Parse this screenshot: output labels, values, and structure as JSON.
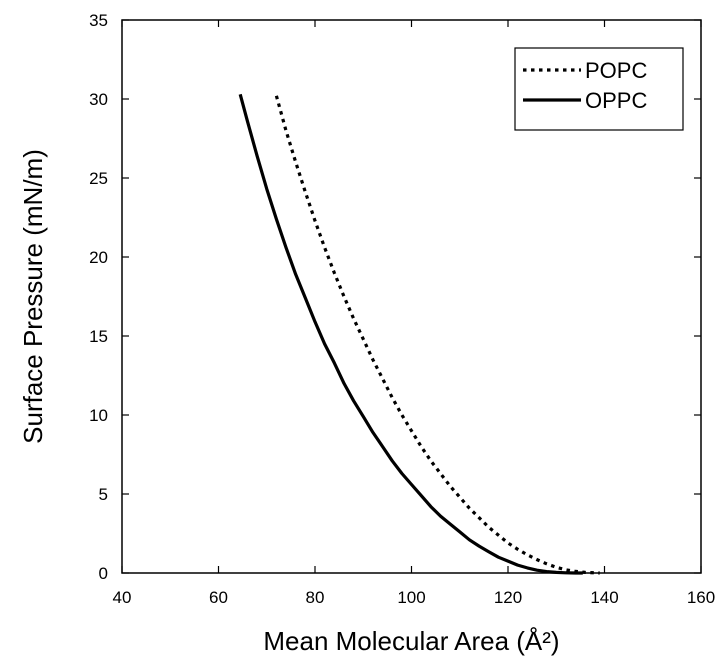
{
  "chart_data": {
    "type": "line",
    "xlabel": "Mean Molecular Area (Å²)",
    "ylabel": "Surface Pressure (mN/m)",
    "xlim": [
      40,
      160
    ],
    "ylim": [
      0,
      35
    ],
    "xticks": [
      40,
      60,
      80,
      100,
      120,
      140,
      160
    ],
    "yticks": [
      0,
      5,
      10,
      15,
      20,
      25,
      30,
      35
    ],
    "grid": false,
    "legend_position": "top-right",
    "series": [
      {
        "name": "POPC",
        "line_style": "dotted",
        "color": "#000000",
        "x": [
          72,
          74,
          76,
          78,
          80,
          82,
          84,
          86,
          88,
          90,
          92,
          94,
          96,
          98,
          100,
          102,
          104,
          106,
          108,
          110,
          112,
          114,
          116,
          118,
          120,
          122,
          124,
          126,
          128,
          130,
          132,
          134,
          136,
          138,
          139
        ],
        "y": [
          30.2,
          28.0,
          26.0,
          24.1,
          22.3,
          20.6,
          19.0,
          17.5,
          16.1,
          14.8,
          13.5,
          12.3,
          11.1,
          10.0,
          9.0,
          8.0,
          7.1,
          6.3,
          5.5,
          4.8,
          4.1,
          3.5,
          2.9,
          2.4,
          1.9,
          1.5,
          1.15,
          0.85,
          0.58,
          0.36,
          0.2,
          0.1,
          0.04,
          0.01,
          0.0
        ]
      },
      {
        "name": "OPPC",
        "line_style": "solid",
        "color": "#000000",
        "x": [
          64.5,
          66,
          68,
          70,
          72,
          74,
          76,
          78,
          80,
          82,
          84,
          86,
          88,
          90,
          92,
          94,
          96,
          98,
          100,
          102,
          104,
          106,
          108,
          110,
          112,
          114,
          116,
          118,
          120,
          122,
          124,
          126,
          128,
          130,
          132,
          134,
          135.5
        ],
        "y": [
          30.3,
          28.6,
          26.4,
          24.3,
          22.4,
          20.6,
          18.9,
          17.4,
          15.9,
          14.5,
          13.3,
          12.0,
          10.9,
          9.9,
          8.9,
          8.0,
          7.1,
          6.3,
          5.6,
          4.9,
          4.2,
          3.6,
          3.1,
          2.6,
          2.1,
          1.7,
          1.35,
          1.0,
          0.75,
          0.5,
          0.32,
          0.18,
          0.09,
          0.04,
          0.01,
          0.0,
          0.0
        ]
      }
    ],
    "legend": {
      "entries": [
        "POPC",
        "OPPC"
      ]
    }
  }
}
